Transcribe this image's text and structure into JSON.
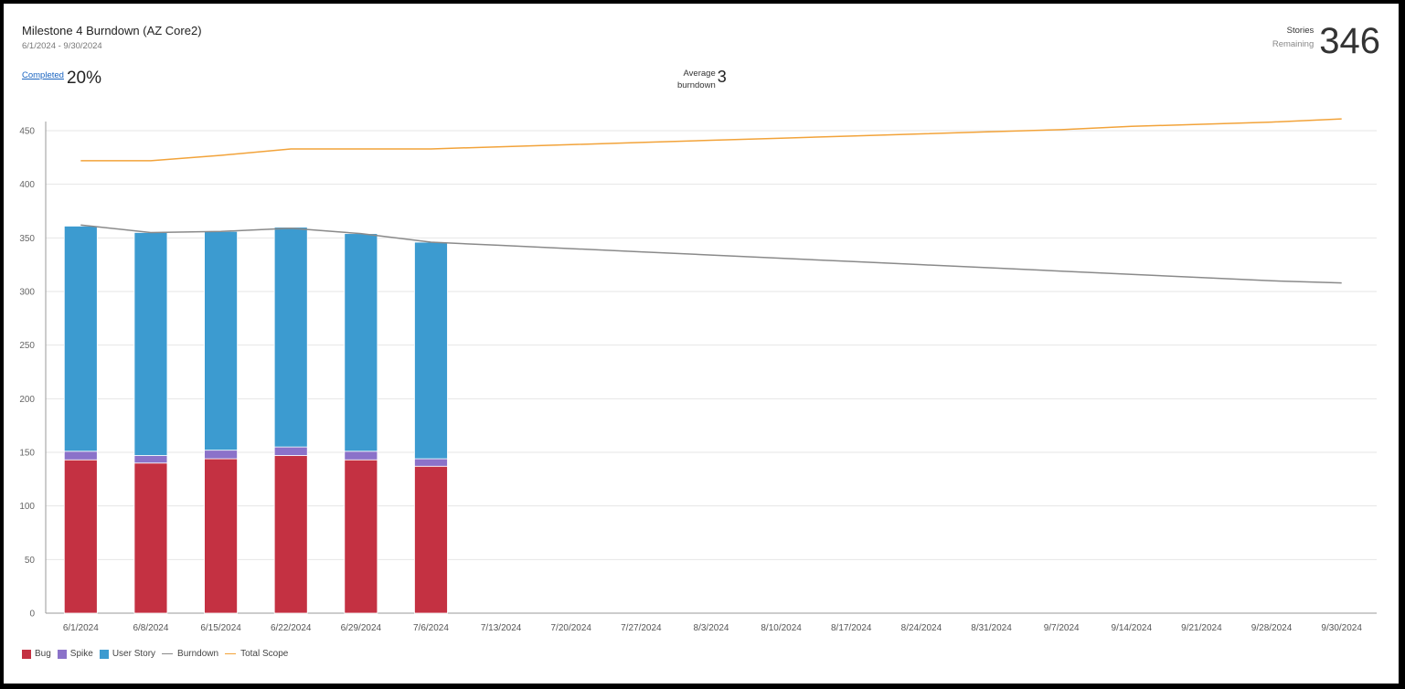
{
  "widget": {
    "title": "Milestone 4 Burndown (AZ Core2)",
    "date_range": "6/1/2024 - 9/30/2024",
    "completed_label": "Completed",
    "completed_value": "20%",
    "average_label_line1": "Average",
    "average_label_line2": "burndown",
    "average_value": "3",
    "stories_label_line1": "Stories",
    "stories_label_line2": "Remaining",
    "stories_value": "346"
  },
  "colors": {
    "bug": "#c43142",
    "spike": "#8b72c9",
    "user_story": "#3c9bd0",
    "burndown": "#8a8a8a",
    "total_scope": "#f2a33a",
    "gridline": "#e6e6e6"
  },
  "chart_data": {
    "type": "bar",
    "stacked": true,
    "categories": [
      "6/1/2024",
      "6/8/2024",
      "6/15/2024",
      "6/22/2024",
      "6/29/2024",
      "7/6/2024",
      "7/13/2024",
      "7/20/2024",
      "7/27/2024",
      "8/3/2024",
      "8/10/2024",
      "8/17/2024",
      "8/24/2024",
      "8/31/2024",
      "9/7/2024",
      "9/14/2024",
      "9/21/2024",
      "9/28/2024",
      "9/30/2024"
    ],
    "ylim": [
      0,
      450
    ],
    "yticks": [
      0,
      50,
      100,
      150,
      200,
      250,
      300,
      350,
      400,
      450
    ],
    "grid": true,
    "legend_position": "bottom-left",
    "series": [
      {
        "name": "Bug",
        "kind": "bar",
        "color": "#c43142",
        "values": [
          143,
          140,
          144,
          147,
          143,
          137,
          null,
          null,
          null,
          null,
          null,
          null,
          null,
          null,
          null,
          null,
          null,
          null,
          null
        ]
      },
      {
        "name": "Spike",
        "kind": "bar",
        "color": "#8b72c9",
        "values": [
          8,
          7,
          8,
          8,
          8,
          7,
          null,
          null,
          null,
          null,
          null,
          null,
          null,
          null,
          null,
          null,
          null,
          null,
          null
        ]
      },
      {
        "name": "User Story",
        "kind": "bar",
        "color": "#3c9bd0",
        "values": [
          210,
          208,
          204,
          205,
          203,
          202,
          null,
          null,
          null,
          null,
          null,
          null,
          null,
          null,
          null,
          null,
          null,
          null,
          null
        ]
      },
      {
        "name": "Burndown",
        "kind": "line",
        "color": "#8a8a8a",
        "values": [
          362,
          355,
          356,
          359,
          354,
          346,
          343,
          340,
          337,
          334,
          331,
          328,
          325,
          322,
          319,
          316,
          313,
          310,
          308
        ]
      },
      {
        "name": "Total Scope",
        "kind": "line",
        "color": "#f2a33a",
        "values": [
          422,
          422,
          427,
          433,
          433,
          433,
          435,
          437,
          439,
          441,
          443,
          445,
          447,
          449,
          451,
          454,
          456,
          458,
          461
        ]
      }
    ]
  },
  "legend": [
    {
      "label": "Bug",
      "type": "swatch",
      "color": "#c43142"
    },
    {
      "label": "Spike",
      "type": "swatch",
      "color": "#8b72c9"
    },
    {
      "label": "User Story",
      "type": "swatch",
      "color": "#3c9bd0"
    },
    {
      "label": "Burndown",
      "type": "line",
      "color": "#8a8a8a"
    },
    {
      "label": "Total Scope",
      "type": "line",
      "color": "#f2a33a"
    }
  ]
}
